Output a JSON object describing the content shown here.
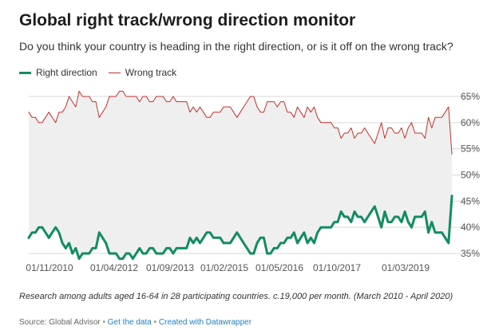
{
  "title": "Global right track/wrong direction monitor",
  "subtitle": "Do you think your country is heading in the right direction, or is it off on the wrong track?",
  "notes": "Research among adults aged 16-64 in 28 participating countries. c.19,000 per month. (March 2010 - April 2020)",
  "footer": {
    "source": "Source: Global Advisor",
    "separator": " • ",
    "get_data": "Get the data",
    "created_with": "Created with Datawrapper"
  },
  "colors": {
    "right": "#128c63",
    "wrong": "#c0312c",
    "band": "#efefef",
    "grid": "#d9d9d9"
  },
  "chart_data": {
    "type": "line",
    "x_tick_labels": [
      "01/11/2010",
      "01/04/2012",
      "01/09/2013",
      "01/02/2015",
      "01/05/2016",
      "01/10/2017",
      "01/03/2019"
    ],
    "y_tick_labels": [
      "65%",
      "60%",
      "55%",
      "50%",
      "45%",
      "40%",
      "35%"
    ],
    "ylim": [
      35,
      65
    ],
    "y_ticks": [
      65,
      60,
      55,
      50,
      45,
      40,
      35
    ],
    "x_start": "03/2010",
    "x_end": "04/2020",
    "legend_position": "top-left",
    "series": [
      {
        "name": "Right direction",
        "color": "#128c63",
        "values": [
          38,
          39,
          39,
          40,
          40,
          39,
          38,
          39,
          40,
          39,
          37,
          36,
          37,
          35,
          36,
          34,
          35,
          35,
          35,
          36,
          36,
          39,
          38,
          37,
          35,
          35,
          35,
          34,
          34,
          35,
          35,
          34,
          35,
          36,
          35,
          35,
          36,
          36,
          35,
          35,
          35,
          36,
          36,
          35,
          36,
          36,
          36,
          36,
          38,
          37,
          38,
          37,
          38,
          39,
          39,
          38,
          38,
          38,
          37,
          37,
          37,
          38,
          39,
          38,
          37,
          36,
          35,
          35,
          37,
          38,
          38,
          35,
          35,
          36,
          36,
          37,
          37,
          38,
          38,
          39,
          37,
          38,
          39,
          37,
          38,
          37,
          39,
          40,
          40,
          40,
          40,
          41,
          41,
          43,
          42,
          42,
          41,
          43,
          42,
          42,
          41,
          42,
          43,
          44,
          42,
          40,
          43,
          41,
          41,
          42,
          42,
          41,
          43,
          41,
          40,
          42,
          42,
          42,
          43,
          39,
          41,
          39,
          39,
          39,
          38,
          37,
          46
        ],
        "shadow_values": [
          62,
          61,
          61,
          60,
          60,
          61,
          62,
          61,
          60,
          62,
          62,
          63,
          65,
          64,
          63,
          66,
          65,
          65,
          65,
          64,
          64,
          61,
          62,
          63,
          65,
          65,
          65,
          66,
          66,
          65,
          65,
          65,
          65,
          64,
          65,
          65,
          64,
          64,
          65,
          65,
          65,
          64,
          64,
          65,
          64,
          64,
          64,
          64,
          62,
          63,
          62,
          63,
          62,
          61,
          61,
          62,
          62,
          62,
          63,
          63,
          63,
          62,
          61,
          62,
          63,
          64,
          65,
          65,
          63,
          62,
          62,
          64,
          64,
          64,
          63,
          64,
          64,
          62,
          62,
          61,
          63,
          62,
          61,
          63,
          62,
          63,
          61,
          60,
          60,
          60,
          60,
          59,
          59,
          57,
          58,
          58,
          59,
          57,
          58,
          58,
          59,
          58,
          57,
          56,
          58,
          60,
          57,
          59,
          59,
          58,
          58,
          59,
          57,
          59,
          60,
          58,
          58,
          58,
          57,
          61,
          59,
          61,
          61,
          61,
          62,
          63,
          54
        ]
      },
      {
        "name": "Wrong track",
        "color": "#c0312c",
        "values": [
          62,
          61,
          61,
          60,
          60,
          61,
          62,
          61,
          60,
          62,
          62,
          63,
          65,
          64,
          63,
          66,
          65,
          65,
          65,
          64,
          64,
          61,
          62,
          63,
          65,
          65,
          65,
          66,
          66,
          65,
          65,
          65,
          65,
          64,
          65,
          65,
          64,
          64,
          65,
          65,
          65,
          64,
          64,
          65,
          64,
          64,
          64,
          64,
          62,
          63,
          62,
          63,
          62,
          61,
          61,
          62,
          62,
          62,
          63,
          63,
          63,
          62,
          61,
          62,
          63,
          64,
          65,
          65,
          63,
          62,
          62,
          64,
          64,
          64,
          63,
          64,
          64,
          62,
          62,
          61,
          63,
          62,
          61,
          63,
          62,
          63,
          61,
          60,
          60,
          60,
          60,
          59,
          59,
          57,
          58,
          58,
          59,
          57,
          58,
          58,
          59,
          58,
          57,
          56,
          58,
          60,
          57,
          59,
          59,
          58,
          58,
          59,
          57,
          59,
          60,
          58,
          58,
          58,
          57,
          61,
          59,
          61,
          61,
          61,
          62,
          63,
          54
        ]
      }
    ]
  },
  "legend": {
    "right_label": "Right direction",
    "wrong_label": "Wrong track"
  }
}
